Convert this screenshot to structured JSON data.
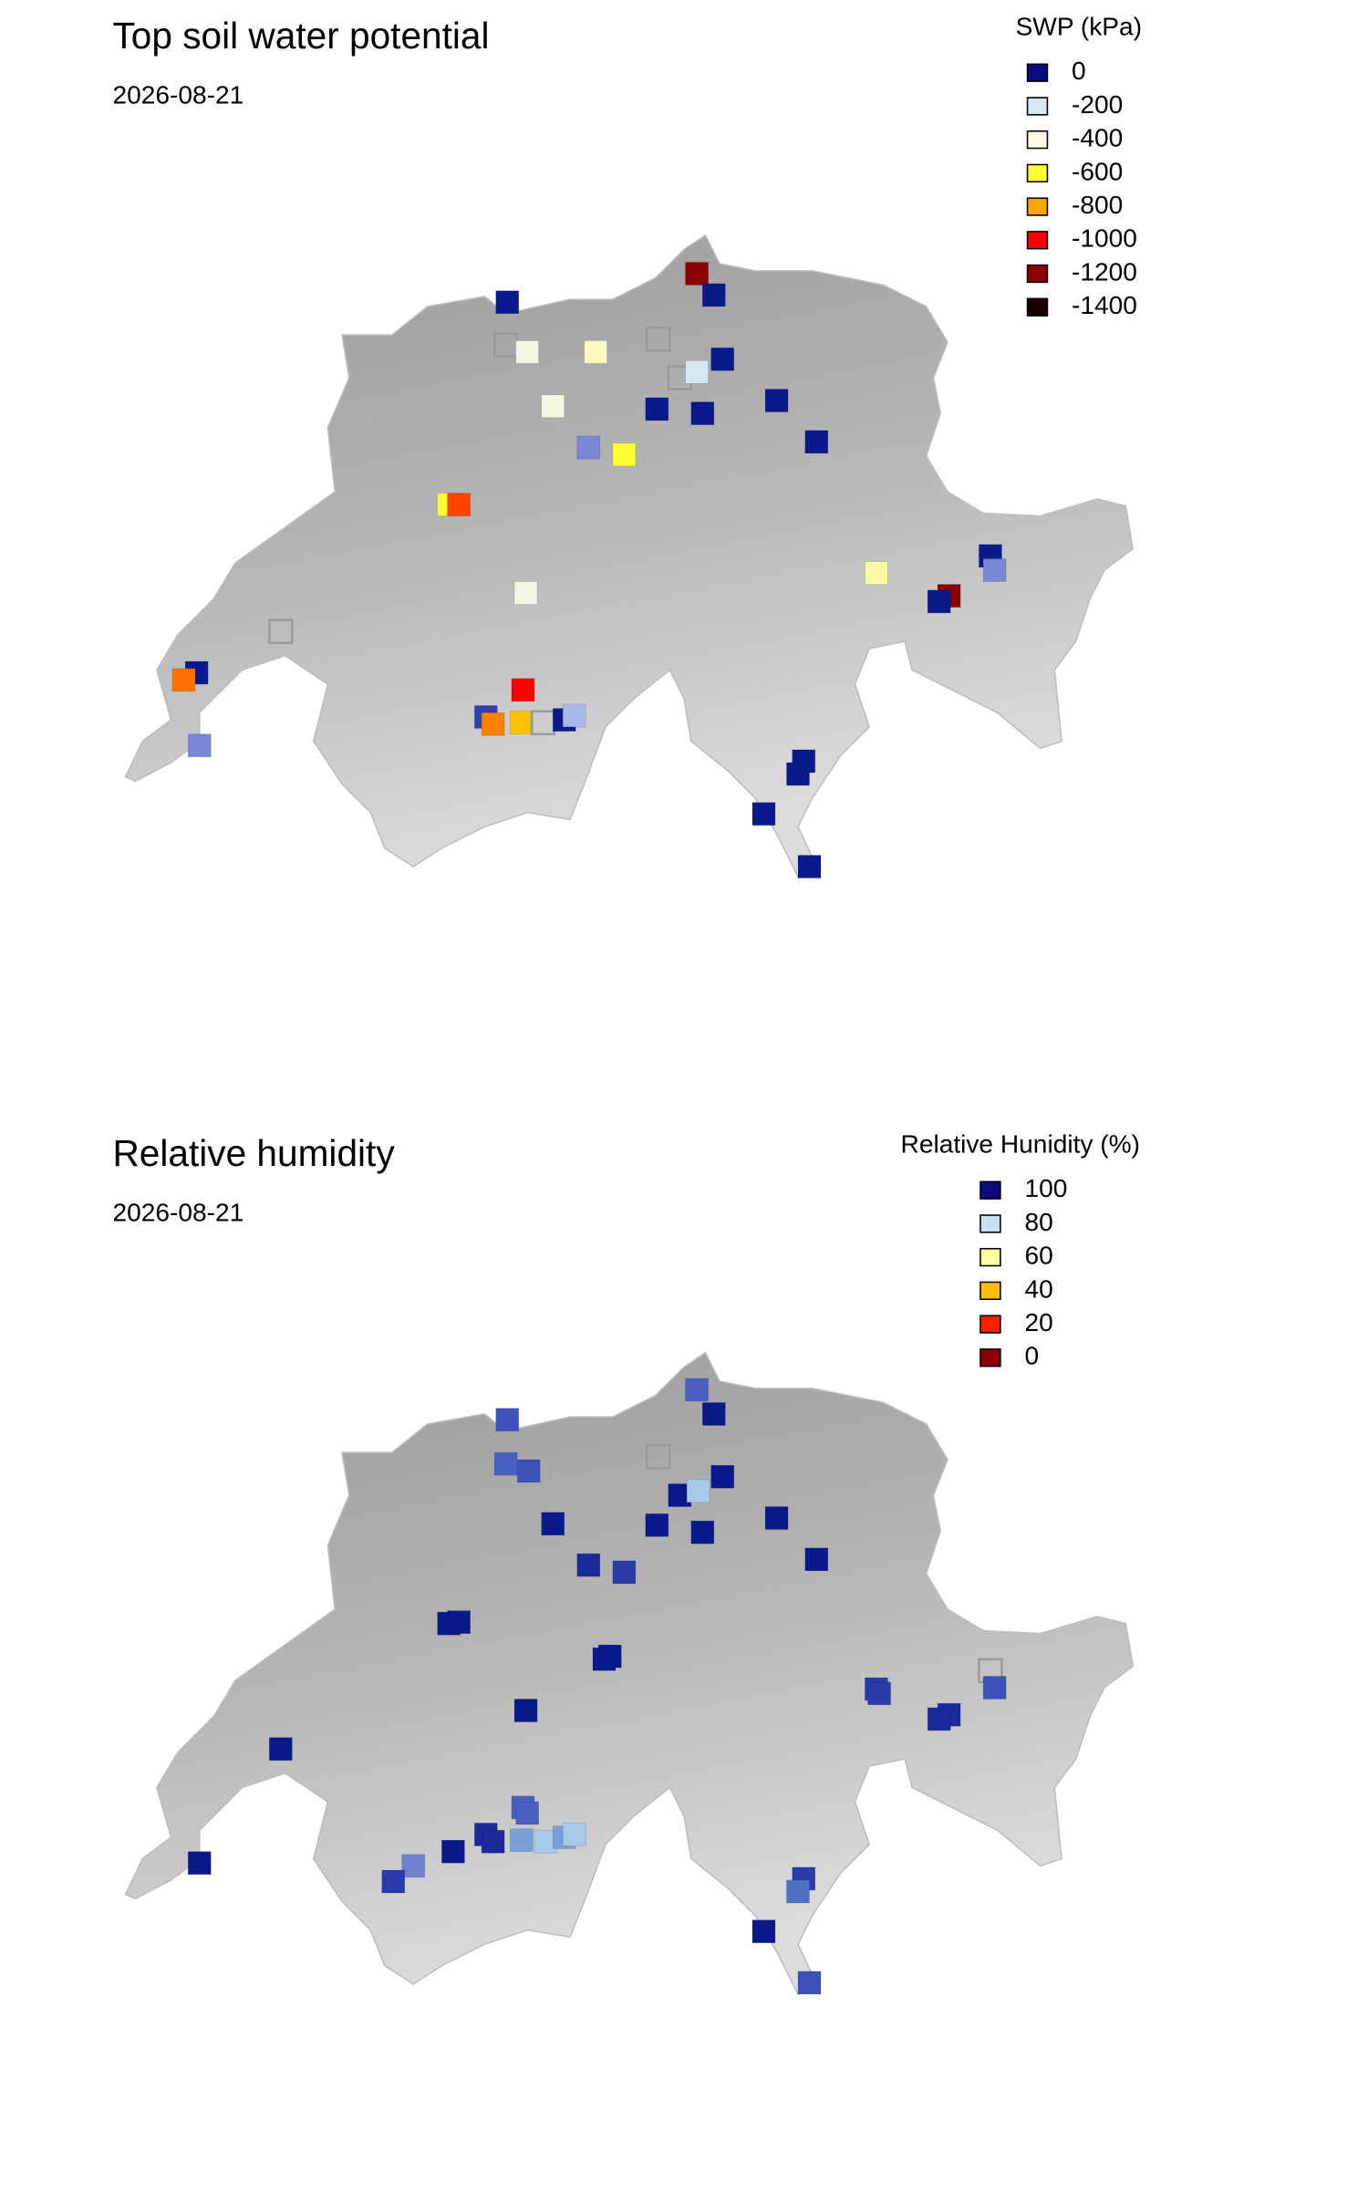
{
  "maps": [
    {
      "title": "Top soil water potential",
      "date": "2026-08-21",
      "legend": {
        "title": "SWP (kPa)",
        "items": [
          {
            "value": 0,
            "color": "#0a0a80"
          },
          {
            "value": -200,
            "color": "#d4e8f2"
          },
          {
            "value": -400,
            "color": "#fbfbe6"
          },
          {
            "value": -600,
            "color": "#ffff33"
          },
          {
            "value": -800,
            "color": "#ffa500"
          },
          {
            "value": -1000,
            "color": "#ff0000"
          },
          {
            "value": -1200,
            "color": "#8b0000"
          },
          {
            "value": -1400,
            "color": "#1a0000"
          }
        ]
      }
    },
    {
      "title": "Relative humidity",
      "date": "2026-08-21",
      "legend": {
        "title": "Relative Hunidity (%)",
        "items": [
          {
            "value": 100,
            "color": "#0a0a80"
          },
          {
            "value": 80,
            "color": "#c6e2f0"
          },
          {
            "value": 60,
            "color": "#ffffa0"
          },
          {
            "value": 40,
            "color": "#ffbf00"
          },
          {
            "value": 20,
            "color": "#ff2000"
          },
          {
            "value": 0,
            "color": "#8b0000"
          }
        ]
      }
    }
  ]
}
